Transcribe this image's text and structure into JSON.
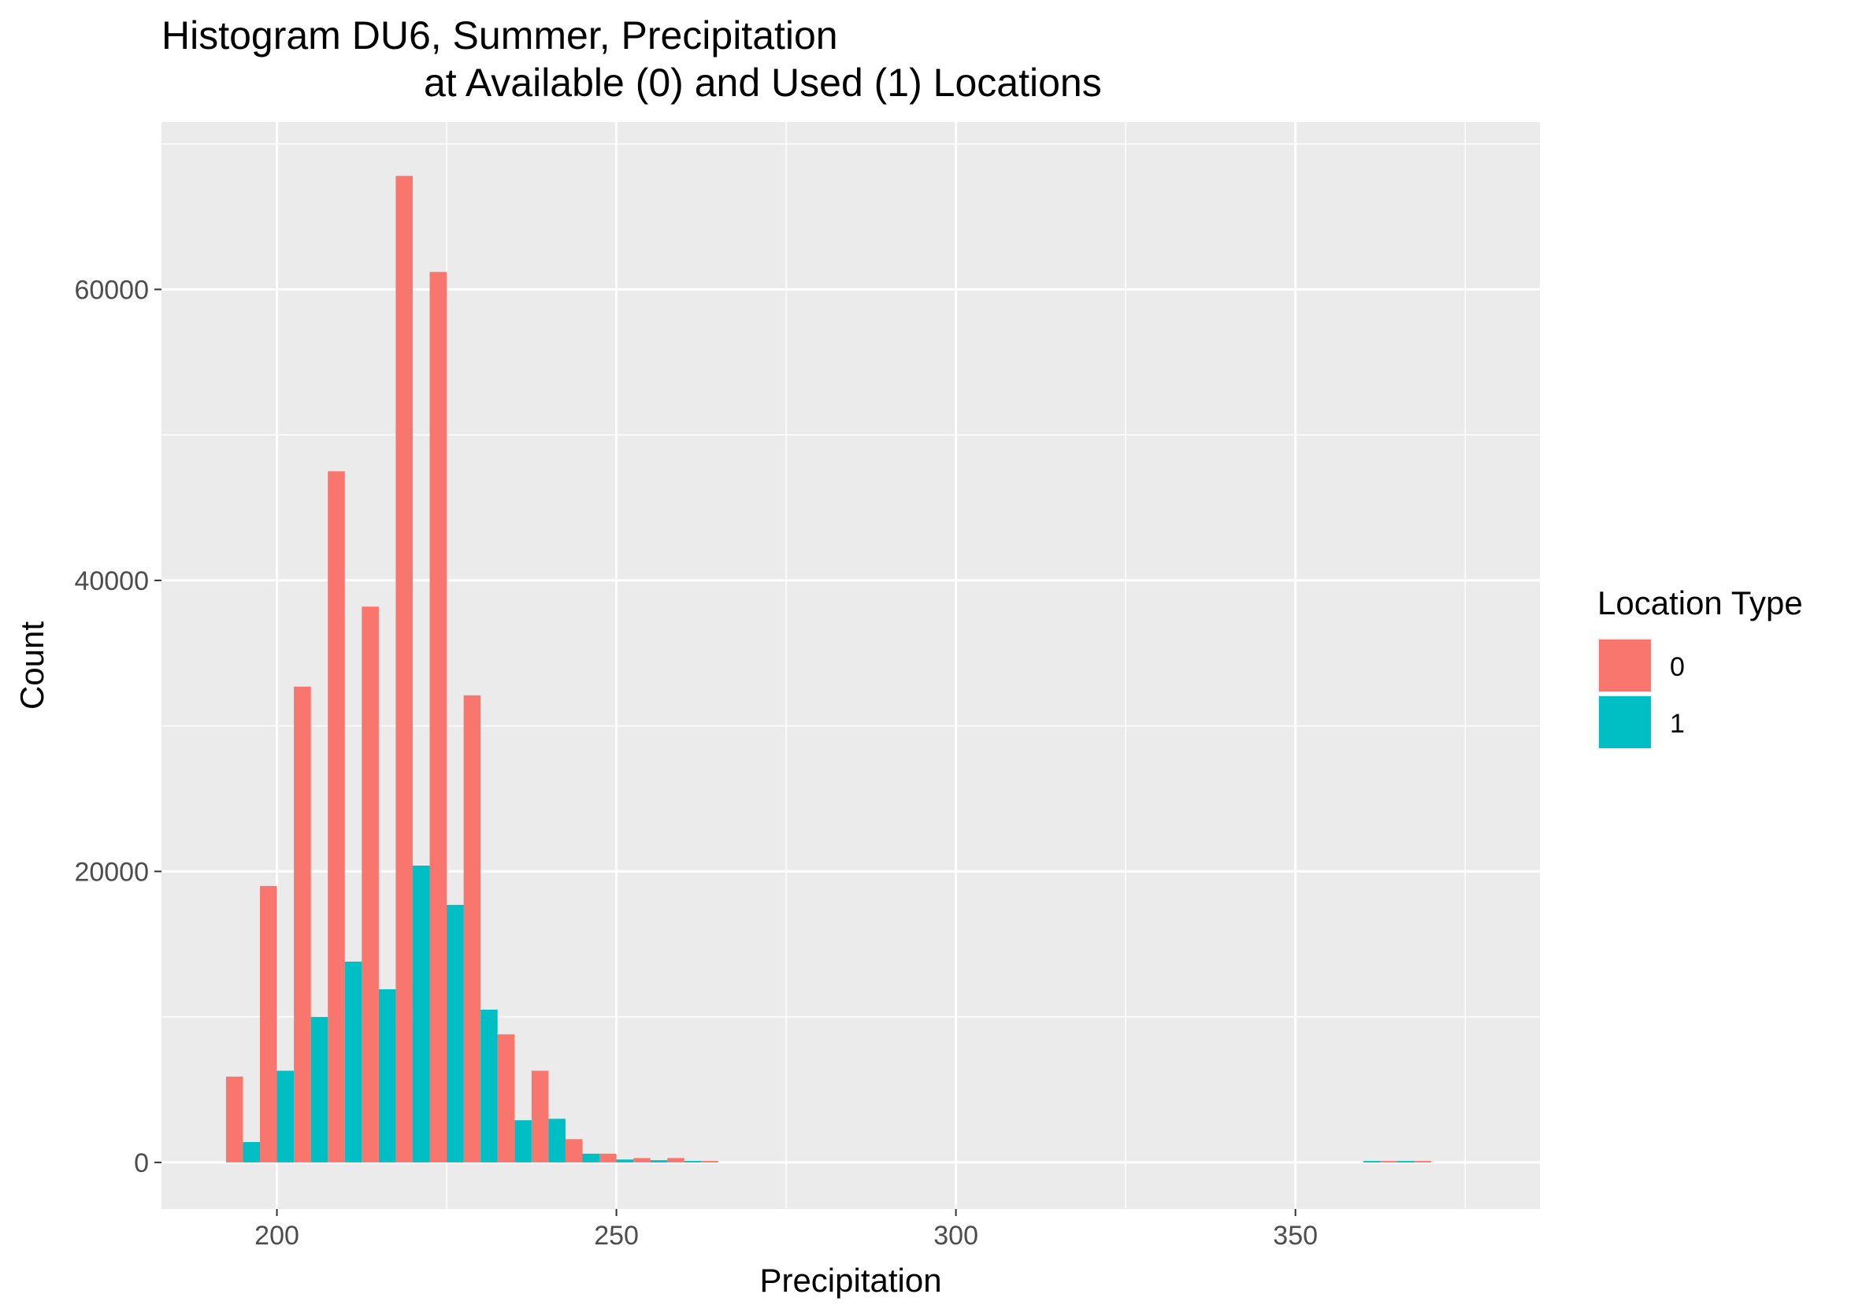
{
  "chart_data": {
    "type": "bar",
    "title": [
      "Histogram DU6, Summer, Precipitation",
      "at Available (0) and Used (1) Locations"
    ],
    "xlabel": "Precipitation",
    "ylabel": "Count",
    "xlim": [
      183,
      386
    ],
    "ylim": [
      -3200,
      71500
    ],
    "xticks": [
      200,
      250,
      300,
      350
    ],
    "yticks": [
      0,
      20000,
      40000,
      60000
    ],
    "bin_width": 5,
    "bin_start": 192.5,
    "grid": true,
    "legend": {
      "title": "Location Type",
      "position": "right",
      "entries": [
        {
          "label": "0",
          "color": "#F8766D"
        },
        {
          "label": "1",
          "color": "#00BFC4"
        }
      ]
    },
    "series": [
      {
        "color": "#F8766D",
        "values": [
          5900,
          19000,
          32700,
          47500,
          38200,
          67800,
          61200,
          32100,
          8800,
          6300,
          1600,
          600,
          300,
          300,
          100,
          0,
          0,
          0,
          0,
          0,
          0,
          0,
          0,
          0,
          0,
          0,
          0,
          0,
          0,
          0,
          0,
          0,
          0,
          0,
          100,
          100,
          0
        ]
      },
      {
        "color": "#00BFC4",
        "values": [
          1400,
          6300,
          10000,
          13800,
          11900,
          20400,
          17700,
          10500,
          2900,
          3000,
          600,
          200,
          150,
          100,
          0,
          0,
          0,
          0,
          0,
          0,
          0,
          0,
          0,
          0,
          0,
          0,
          0,
          0,
          0,
          0,
          0,
          0,
          0,
          100,
          100,
          0,
          0
        ]
      }
    ]
  }
}
